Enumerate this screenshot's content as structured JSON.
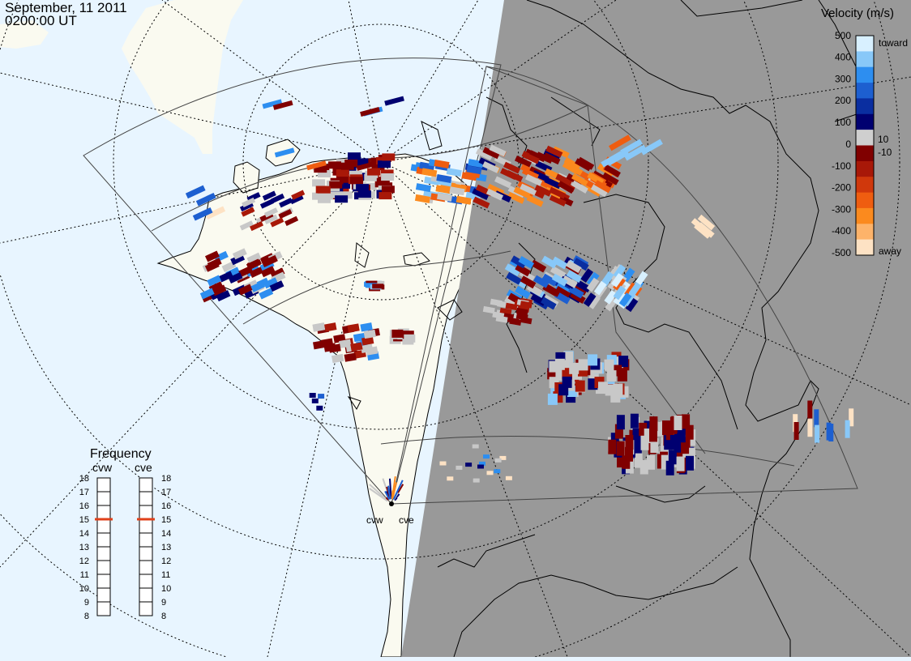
{
  "header": {
    "date": "September, 11 2011",
    "time": "0200:00 UT"
  },
  "colorbar": {
    "title": "Velocity (m/s)",
    "ticks": [
      "500",
      "400",
      "300",
      "200",
      "100",
      "10",
      "0",
      "-10",
      "-100",
      "-200",
      "-300",
      "-400",
      "-500"
    ],
    "toward_label": "toward",
    "away_label": "away",
    "colors": [
      "#fde2c4",
      "#fdb36a",
      "#fb8a1e",
      "#ef5d10",
      "#d0380c",
      "#a81808",
      "#800000",
      "#cfcfcf",
      "#000070",
      "#0a2ea0",
      "#1d5fd0",
      "#2d8ef0",
      "#88c8f8",
      "#d8f0ff"
    ]
  },
  "frequency_panel": {
    "title": "Frequency",
    "radars": [
      {
        "name": "cvw",
        "frequency_mhz": 15
      },
      {
        "name": "cve",
        "frequency_mhz": 15
      }
    ],
    "scale": [
      "18",
      "17",
      "16",
      "15",
      "14",
      "13",
      "12",
      "11",
      "10",
      "9",
      "8"
    ],
    "marker_color": "#e0401a"
  },
  "radar_sites": [
    {
      "name": "cvw"
    },
    {
      "name": "cve"
    }
  ],
  "map": {
    "ocean_color": "#e8f5ff",
    "land_color": "#fafaf0",
    "night_color": "#999999",
    "ground_scatter_color": "#c8c8c8"
  }
}
